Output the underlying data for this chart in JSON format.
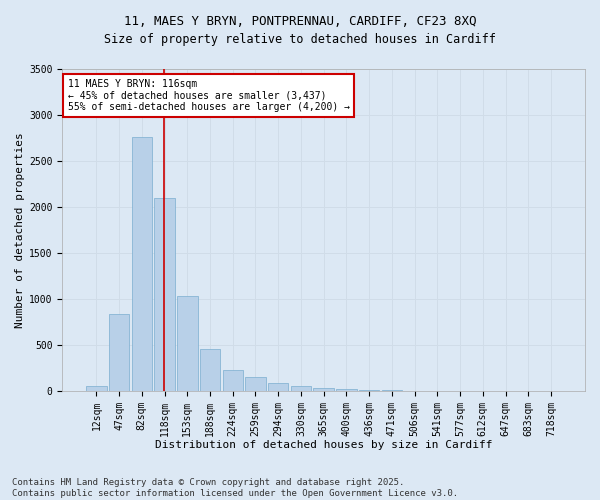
{
  "title": "11, MAES Y BRYN, PONTPRENNAU, CARDIFF, CF23 8XQ",
  "subtitle": "Size of property relative to detached houses in Cardiff",
  "xlabel": "Distribution of detached houses by size in Cardiff",
  "ylabel": "Number of detached properties",
  "categories": [
    "12sqm",
    "47sqm",
    "82sqm",
    "118sqm",
    "153sqm",
    "188sqm",
    "224sqm",
    "259sqm",
    "294sqm",
    "330sqm",
    "365sqm",
    "400sqm",
    "436sqm",
    "471sqm",
    "506sqm",
    "541sqm",
    "577sqm",
    "612sqm",
    "647sqm",
    "683sqm",
    "718sqm"
  ],
  "values": [
    50,
    840,
    2760,
    2100,
    1030,
    460,
    230,
    155,
    90,
    55,
    35,
    20,
    10,
    5,
    3,
    2,
    1,
    0,
    0,
    0,
    0
  ],
  "bar_color": "#b8d0e8",
  "bar_edge_color": "#7aaed0",
  "grid_color": "#d0dce8",
  "background_color": "#dce8f4",
  "red_line_index": 3,
  "annotation_text": "11 MAES Y BRYN: 116sqm\n← 45% of detached houses are smaller (3,437)\n55% of semi-detached houses are larger (4,200) →",
  "annotation_box_color": "#ffffff",
  "annotation_box_edge": "#cc0000",
  "ylim": [
    0,
    3500
  ],
  "yticks": [
    0,
    500,
    1000,
    1500,
    2000,
    2500,
    3000,
    3500
  ],
  "footer_text": "Contains HM Land Registry data © Crown copyright and database right 2025.\nContains public sector information licensed under the Open Government Licence v3.0.",
  "title_fontsize": 9,
  "axis_label_fontsize": 8,
  "tick_fontsize": 7,
  "footer_fontsize": 6.5
}
